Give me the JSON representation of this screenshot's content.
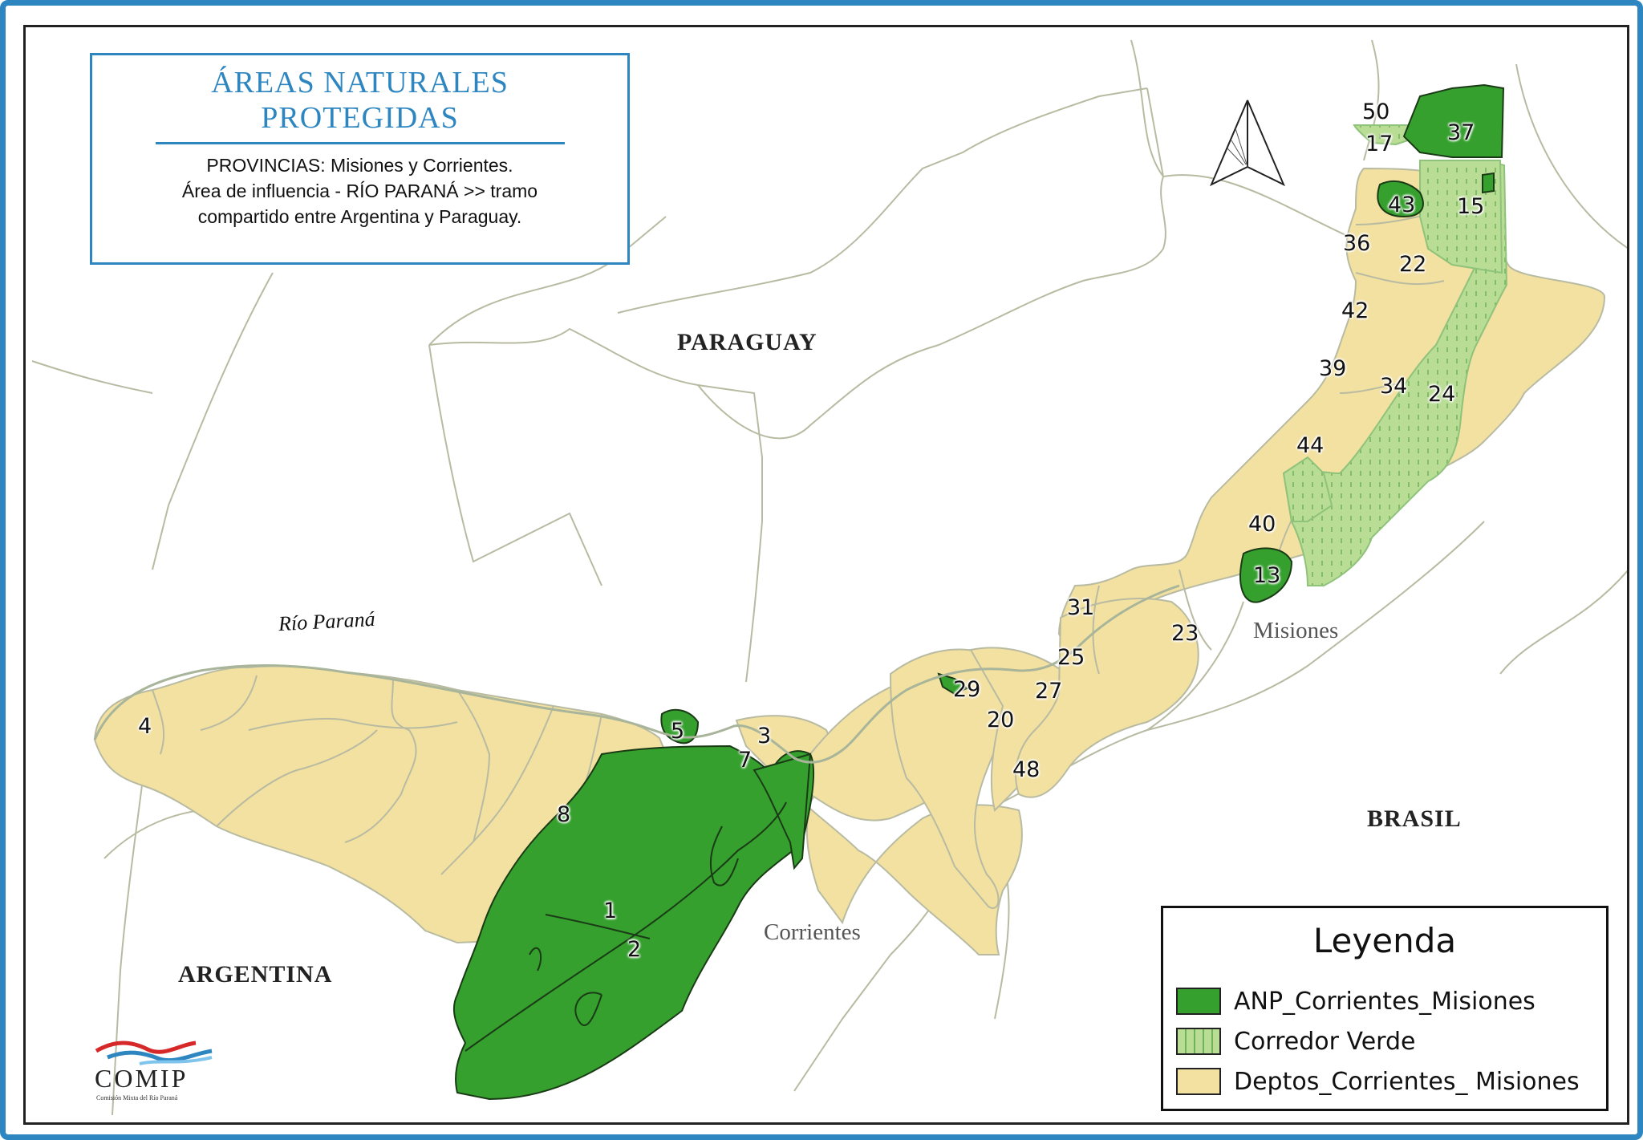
{
  "title": {
    "main_line1": "ÁREAS NATURALES",
    "main_line2": "PROTEGIDAS",
    "desc_line1": "PROVINCIAS: Misiones y Corrientes.",
    "desc_line2": "Área de influencia - RÍO PARANÁ >> tramo",
    "desc_line3": "compartido entre Argentina y Paraguay."
  },
  "places": {
    "paraguay": "PARAGUAY",
    "argentina": "ARGENTINA",
    "brasil": "BRASIL",
    "corrientes": "Corrientes",
    "misiones": "Misiones",
    "river": "Río Paraná"
  },
  "area_numbers": {
    "n1": "1",
    "n2": "2",
    "n3": "3",
    "n4": "4",
    "n5": "5",
    "n7": "7",
    "n8": "8",
    "n13": "13",
    "n15": "15",
    "n17": "17",
    "n20": "20",
    "n22": "22",
    "n23": "23",
    "n24": "24",
    "n25": "25",
    "n27": "27",
    "n29": "29",
    "n31": "31",
    "n34": "34",
    "n36": "36",
    "n37": "37",
    "n39": "39",
    "n40": "40",
    "n42": "42",
    "n43": "43",
    "n44": "44",
    "n48": "48",
    "n50": "50"
  },
  "legend": {
    "title": "Leyenda",
    "items": [
      {
        "label": "ANP_Corrientes_Misiones",
        "color": "#35a02e"
      },
      {
        "label": "Corredor Verde",
        "color": "#b9dd95"
      },
      {
        "label": "Deptos_Corrientes_ Misiones",
        "color": "#f3e1a1"
      }
    ]
  },
  "logo": {
    "name": "COMIP",
    "subtitle": "Comisión Mixta del Río Paraná"
  },
  "colors": {
    "frame": "#2e86c1",
    "anp": "#35a02e",
    "corredor": "#b9dd95",
    "deptos": "#f3e1a1",
    "borders": "#b8bba2"
  }
}
